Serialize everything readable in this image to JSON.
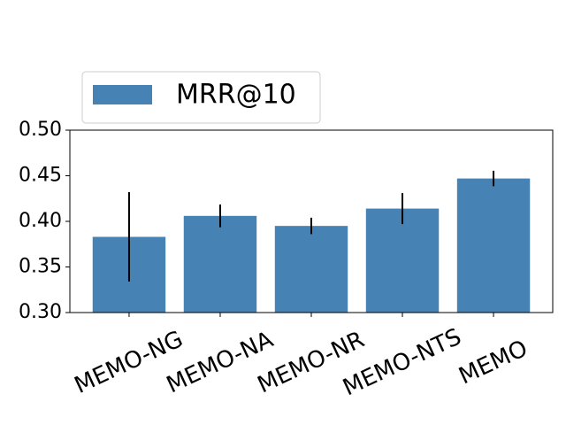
{
  "chart_data": {
    "type": "bar",
    "categories": [
      "MEMO-NG",
      "MEMO-NA",
      "MEMO-NR",
      "MEMO-NTS",
      "MEMO"
    ],
    "series": [
      {
        "name": "MRR@10",
        "color": "#4682b4",
        "values": [
          0.383,
          0.406,
          0.395,
          0.414,
          0.447
        ],
        "errors": [
          0.049,
          0.0125,
          0.009,
          0.017,
          0.0085
        ]
      }
    ],
    "ylim": [
      0.3,
      0.5
    ],
    "yticks": [
      {
        "value": 0.3,
        "label": "0.30"
      },
      {
        "value": 0.35,
        "label": "0.35"
      },
      {
        "value": 0.4,
        "label": "0.40"
      },
      {
        "value": 0.45,
        "label": "0.45"
      },
      {
        "value": 0.5,
        "label": "0.50"
      }
    ],
    "legend": "upper left"
  }
}
